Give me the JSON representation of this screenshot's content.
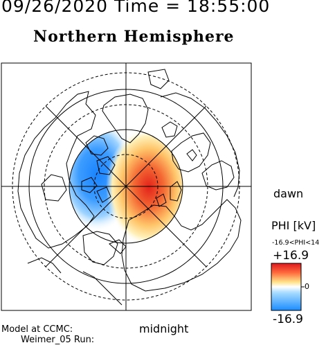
{
  "header": {
    "datetime": "09/26/2020 Time = 18:55:00"
  },
  "title": "Northern Hemisphere",
  "labels": {
    "dawn": "dawn",
    "midnight": "midnight"
  },
  "colorbar": {
    "title": "PHI [kV]",
    "range_text": "-16.9<PHI<14",
    "max_label": "+16.9",
    "zero_label": "0",
    "min_label": "-16.9",
    "max_value": 16.9,
    "min_value": -16.9,
    "colors": [
      "#1a8cff",
      "#a9dcff",
      "#ffffff",
      "#ffe38a",
      "#ff6a3d",
      "#e0181e"
    ]
  },
  "footer": {
    "model_line": "Model at CCMC:",
    "run_line": "Weimer_05 Run:"
  }
}
